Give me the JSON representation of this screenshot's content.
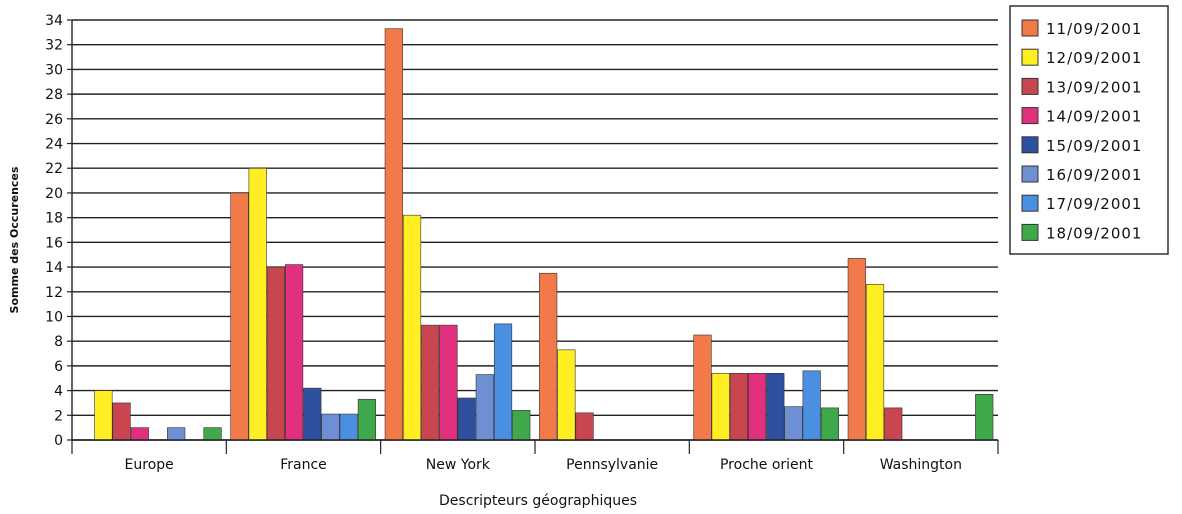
{
  "chart_data": {
    "type": "bar",
    "title": "",
    "xlabel": "Descripteurs géographiques",
    "ylabel": "Somme des Occurences",
    "ylim": [
      0,
      34
    ],
    "yticks": [
      0,
      2,
      4,
      6,
      8,
      10,
      12,
      14,
      16,
      18,
      20,
      22,
      24,
      26,
      28,
      30,
      32,
      34
    ],
    "grid": true,
    "legend_position": "right",
    "categories": [
      "Europe",
      "France",
      "New York",
      "Pennsylvanie",
      "Proche orient",
      "Washington"
    ],
    "series": [
      {
        "name": "11/09/2001",
        "color": "#f27a4a",
        "values": [
          0,
          20,
          33.3,
          13.5,
          8.5,
          14.7
        ]
      },
      {
        "name": "12/09/2001",
        "color": "#ffee22",
        "values": [
          4,
          22,
          18.2,
          7.3,
          5.4,
          12.6
        ]
      },
      {
        "name": "13/09/2001",
        "color": "#c9454f",
        "values": [
          3,
          14,
          9.3,
          2.2,
          5.4,
          2.6
        ]
      },
      {
        "name": "14/09/2001",
        "color": "#e0307e",
        "values": [
          1,
          14.2,
          9.3,
          0,
          5.4,
          0
        ]
      },
      {
        "name": "15/09/2001",
        "color": "#2f4f9f",
        "values": [
          0,
          4.2,
          3.4,
          0,
          5.4,
          0
        ]
      },
      {
        "name": "16/09/2001",
        "color": "#6e8fd3",
        "values": [
          1,
          2.1,
          5.3,
          0,
          2.7,
          0
        ]
      },
      {
        "name": "17/09/2001",
        "color": "#4a8fe0",
        "values": [
          0,
          2.1,
          9.4,
          0,
          5.6,
          0
        ]
      },
      {
        "name": "18/09/2001",
        "color": "#3fa84a",
        "values": [
          1,
          3.3,
          2.4,
          0,
          2.6,
          3.7
        ]
      }
    ]
  }
}
